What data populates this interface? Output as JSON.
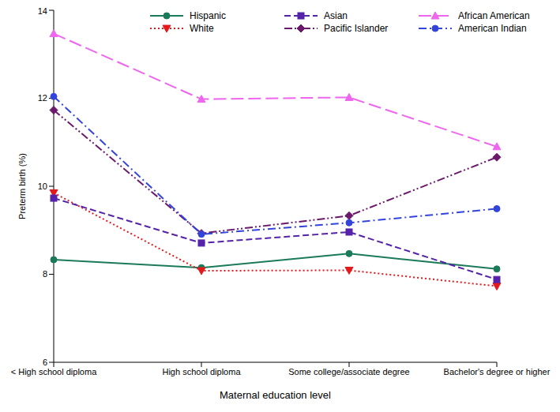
{
  "chart_data": {
    "type": "line",
    "x_label": "Maternal education level",
    "y_label": "Preterm birth (%)",
    "categories": [
      "< High school diploma",
      "High school diploma",
      "Some college/associate degree",
      "Bachelor's degree or higher"
    ],
    "ylim": [
      6,
      14
    ],
    "yticks": [
      6,
      8,
      10,
      12,
      14
    ],
    "grid": false,
    "legend": "top",
    "series": [
      {
        "name": "Hispanic",
        "color": "#1b7a5a",
        "marker": "circle",
        "line_style": "solid",
        "values": [
          8.33,
          8.15,
          8.47,
          8.12
        ]
      },
      {
        "name": "White",
        "color": "#e31a1c",
        "marker": "triangle-down",
        "line_style": "dotted",
        "values": [
          9.85,
          8.08,
          8.09,
          7.73
        ]
      },
      {
        "name": "Asian",
        "color": "#5522aa",
        "marker": "square",
        "line_style": "dashed",
        "values": [
          9.73,
          8.71,
          8.96,
          7.88
        ]
      },
      {
        "name": "Pacific Islander",
        "color": "#6b1a6b",
        "marker": "diamond",
        "line_style": "dashdotdot",
        "values": [
          11.73,
          8.93,
          9.33,
          10.66
        ]
      },
      {
        "name": "African American",
        "color": "#ee66ee",
        "marker": "triangle",
        "line_style": "longdash",
        "values": [
          13.47,
          11.98,
          12.02,
          10.9
        ]
      },
      {
        "name": "American Indian",
        "color": "#3344dd",
        "marker": "circle",
        "line_style": "dashdot",
        "values": [
          12.04,
          8.91,
          9.17,
          9.49
        ]
      }
    ]
  }
}
